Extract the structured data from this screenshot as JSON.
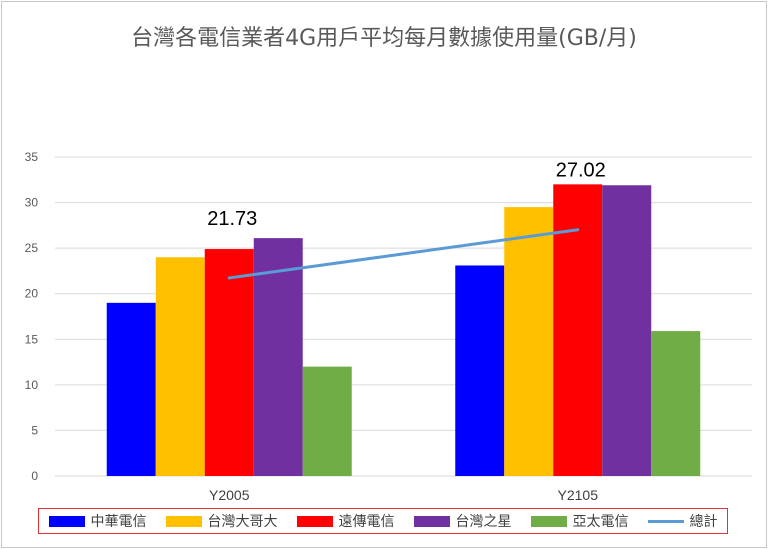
{
  "chart_data": {
    "type": "bar",
    "title": "台灣各電信業者4G用戶平均每月數據使用量(GB/月)",
    "categories": [
      "Y2005",
      "Y2105"
    ],
    "ylim": [
      0,
      35
    ],
    "yticks": [
      "0",
      "5",
      "10",
      "15",
      "20",
      "25",
      "30",
      "35"
    ],
    "grid": true,
    "legend_position": "bottom",
    "series": [
      {
        "name": "中華電信",
        "color": "#0000ff",
        "values": [
          19,
          23.1
        ]
      },
      {
        "name": "台灣大哥大",
        "color": "#ffc000",
        "values": [
          24,
          29.5
        ]
      },
      {
        "name": "遠傳電信",
        "color": "#ff0000",
        "values": [
          24.9,
          32
        ]
      },
      {
        "name": "台灣之星",
        "color": "#7030a0",
        "values": [
          26.1,
          31.9
        ]
      },
      {
        "name": "亞太電信",
        "color": "#70ad47",
        "values": [
          12,
          15.9
        ]
      }
    ],
    "line_series": {
      "name": "總計",
      "color": "#5b9bd5",
      "values": [
        21.73,
        27.02
      ],
      "labels": [
        "21.73",
        "27.02"
      ]
    }
  }
}
